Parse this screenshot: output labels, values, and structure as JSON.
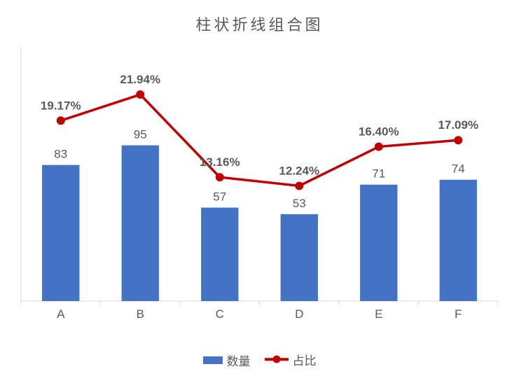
{
  "chart": {
    "type": "bar+line",
    "title": "柱状折线组合图",
    "title_fontsize": 22,
    "title_color": "#595959",
    "background_color": "#ffffff",
    "plot_background_color": "#ffffff",
    "border_color": "#d9d9d9",
    "categories": [
      "A",
      "B",
      "C",
      "D",
      "E",
      "F"
    ],
    "category_label_fontsize": 17,
    "category_label_color": "#595959",
    "bar_series": {
      "name": "数量",
      "values": [
        83,
        95,
        57,
        53,
        71,
        74
      ],
      "color": "#4472c4",
      "ylim": [
        0,
        155
      ],
      "bar_width_ratio": 0.47,
      "data_label_fontsize": 17,
      "data_label_color": "#595959"
    },
    "line_series": {
      "name": "占比",
      "values_pct": [
        19.17,
        21.94,
        13.16,
        12.24,
        16.4,
        17.09
      ],
      "display_labels": [
        "19.17%",
        "21.94%",
        "13.16%",
        "12.24%",
        "16.40%",
        "17.09%"
      ],
      "line_color": "#c00000",
      "line_width": 3.5,
      "marker_style": "circle",
      "marker_fill": "#c00000",
      "marker_stroke": "#c00000",
      "marker_size": 10,
      "ylim_pct": [
        0,
        27
      ],
      "data_label_fontsize": 17,
      "data_label_color": "#595959"
    },
    "axis": {
      "line_color": "#d9d9d9",
      "tick_color": "#d9d9d9",
      "tick_length": 6
    },
    "legend": {
      "position": "bottom",
      "items": [
        {
          "type": "bar",
          "label": "数量",
          "color": "#4472c4"
        },
        {
          "type": "line",
          "label": "占比",
          "color": "#c00000"
        }
      ],
      "fontsize": 17,
      "text_color": "#595959"
    }
  }
}
